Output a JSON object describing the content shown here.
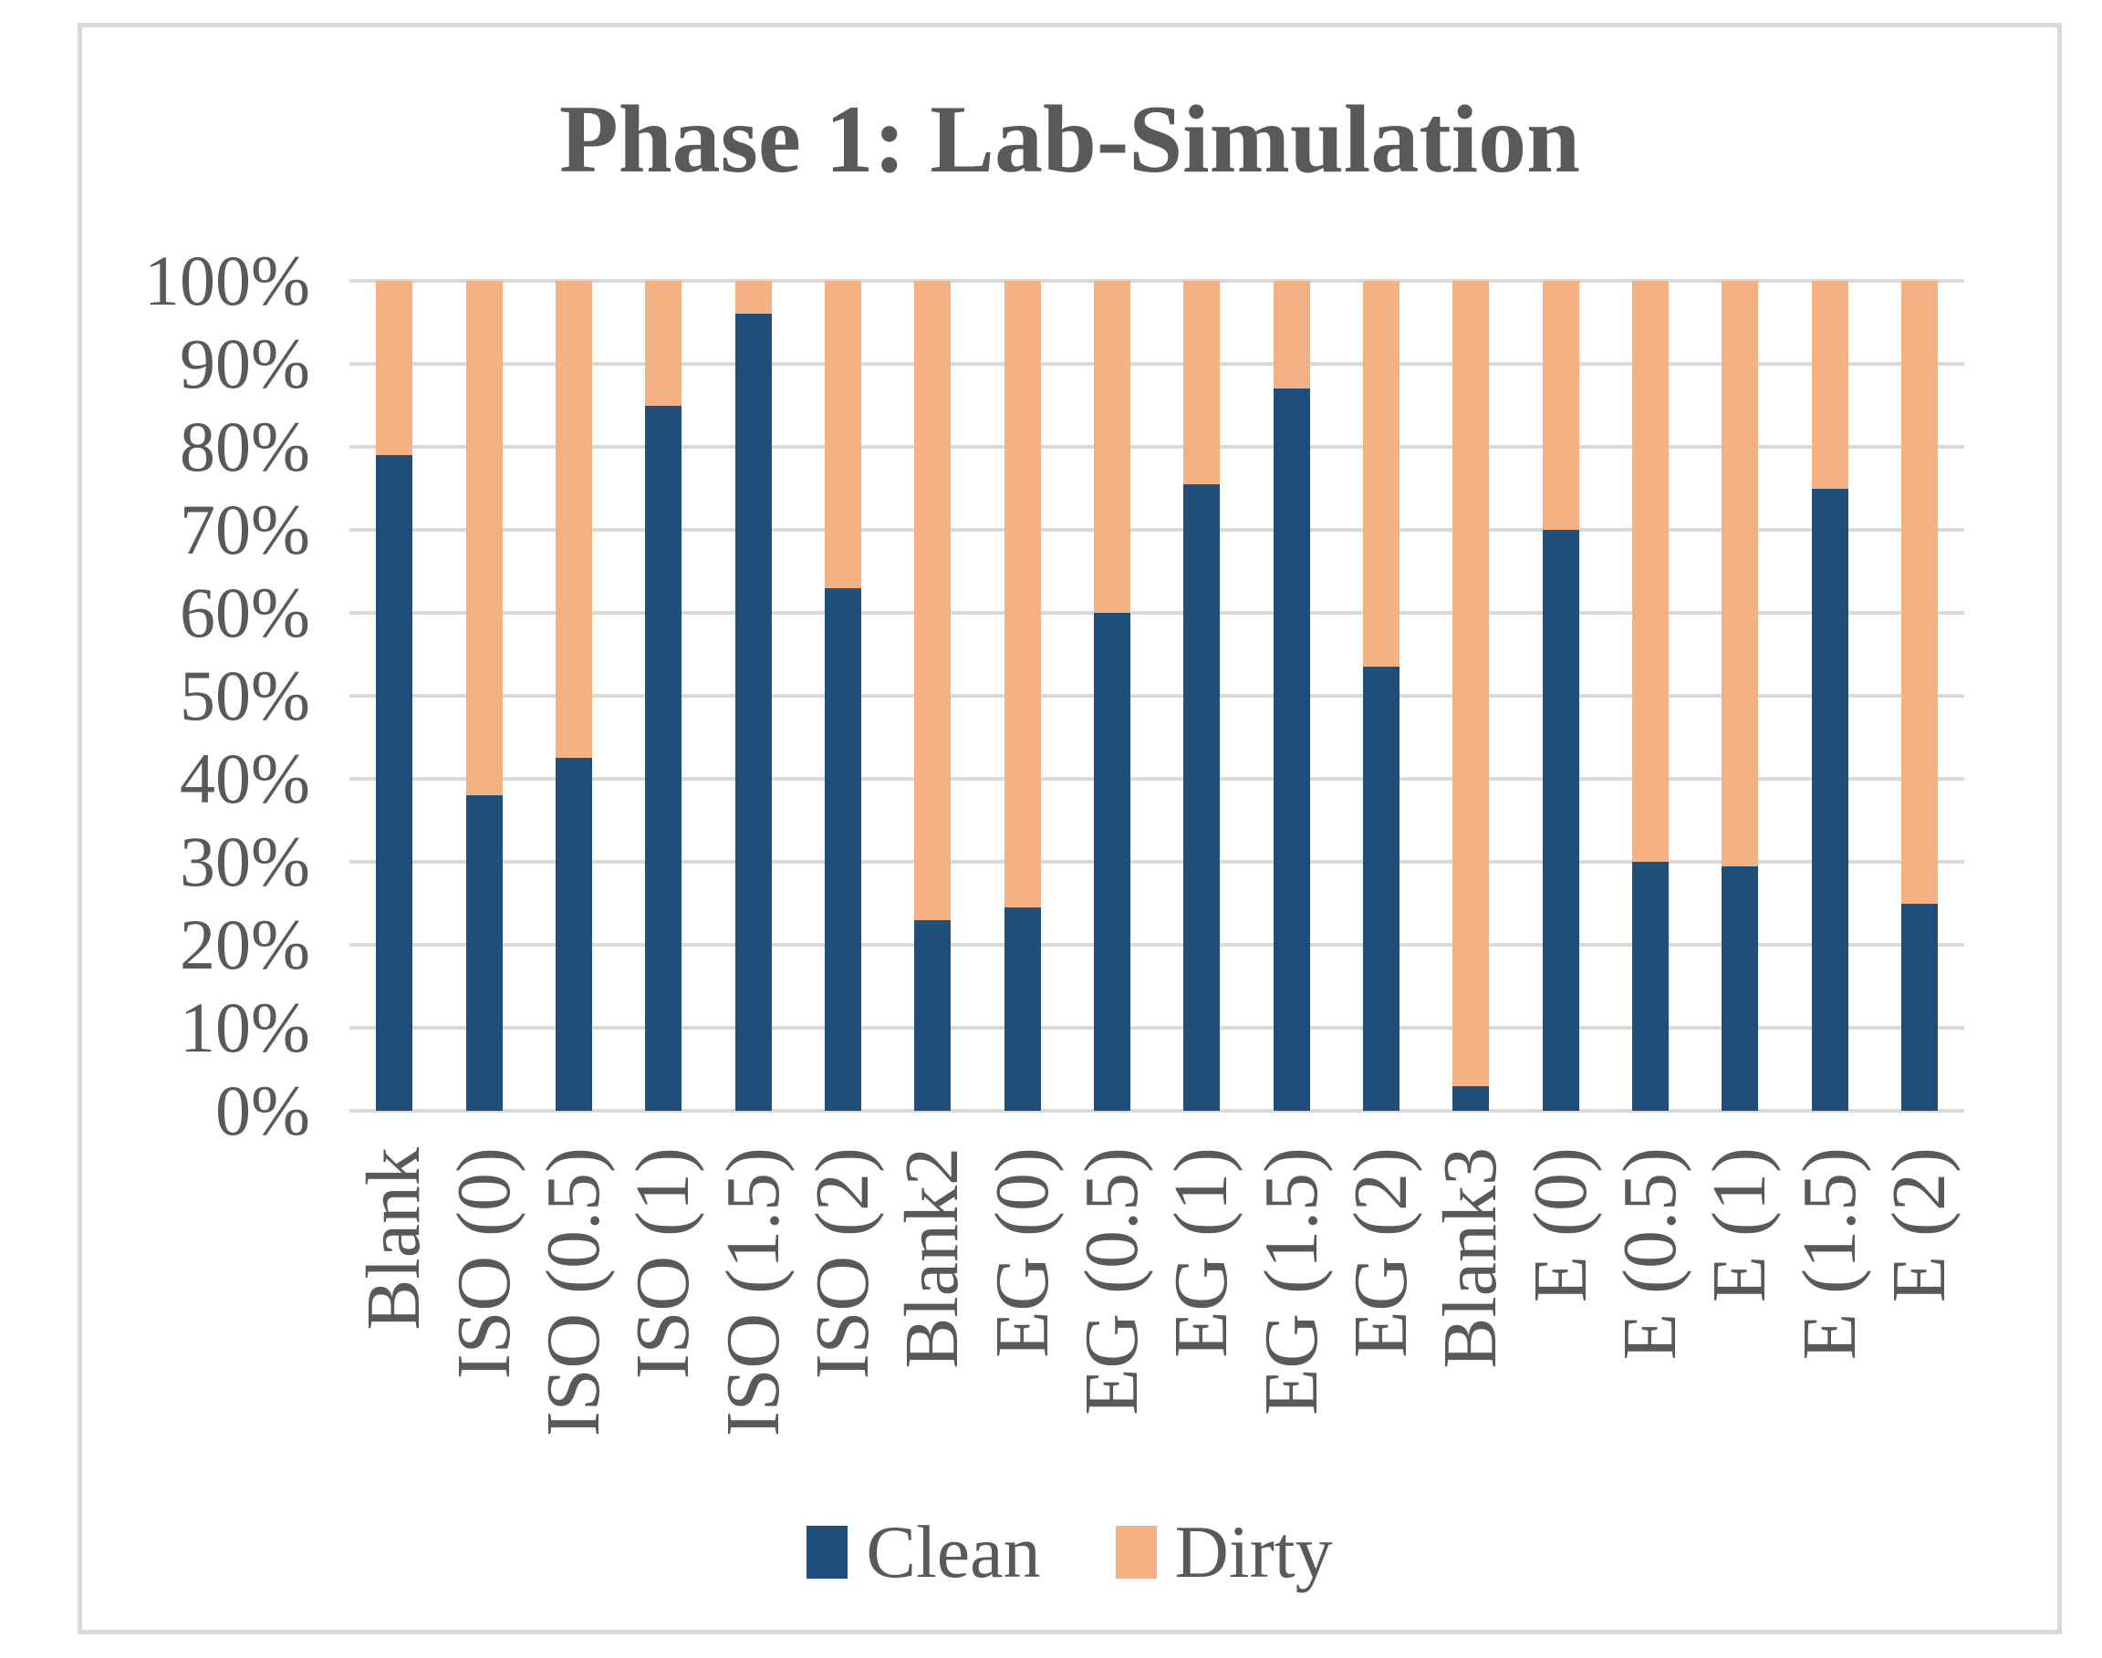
{
  "chart_data": {
    "type": "bar",
    "variant": "stacked-100-column",
    "title": "Phase 1: Lab-Simulation",
    "categories": [
      "Blank",
      "ISO (0)",
      "ISO (0.5)",
      "ISO (1)",
      "ISO (1.5)",
      "ISO (2)",
      "Blank2",
      "EG (0)",
      "EG (0.5)",
      "EG (1)",
      "EG (1.5)",
      "EG (2)",
      "Blank3",
      "E (0)",
      "E (0.5)",
      "E (1)",
      "E (1.5)",
      "E (2)"
    ],
    "series": [
      {
        "name": "Clean",
        "color": "#1F4E79",
        "values": [
          79,
          38,
          42.5,
          85,
          96,
          63,
          23,
          24.5,
          60,
          75.5,
          87,
          53.5,
          3,
          70,
          30,
          29.5,
          75,
          25
        ]
      },
      {
        "name": "Dirty",
        "color": "#F4B183",
        "values": [
          21,
          62,
          57.5,
          15,
          4,
          37,
          77,
          75.5,
          40,
          24.5,
          13,
          46.5,
          97,
          30,
          70,
          70.5,
          25,
          75
        ]
      }
    ],
    "y_axis": {
      "ticks": [
        "100%",
        "90%",
        "80%",
        "70%",
        "60%",
        "50%",
        "40%",
        "30%",
        "20%",
        "10%",
        "0%"
      ],
      "min": 0,
      "max": 100,
      "step": 10,
      "format": "percent"
    },
    "xlabel": "",
    "ylabel": "",
    "grid": true,
    "legend": {
      "position": "bottom",
      "entries": [
        "Clean",
        "Dirty"
      ]
    }
  },
  "colors": {
    "clean": "#1F4E79",
    "dirty": "#F4B183",
    "text": "#595959",
    "gridline": "#D9D9D9",
    "frame_border": "#D9D9D9",
    "background": "#FFFFFF"
  }
}
